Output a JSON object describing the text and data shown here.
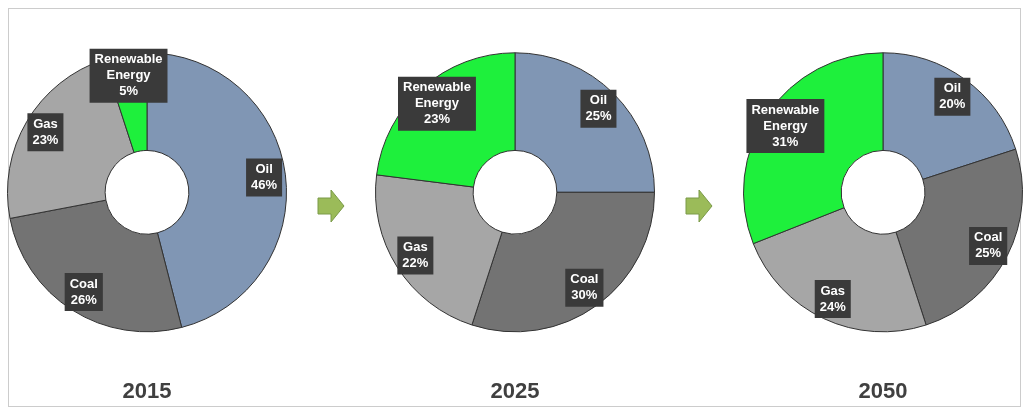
{
  "chart_data": [
    {
      "type": "donut",
      "title": "2015",
      "categories": [
        "Oil",
        "Coal",
        "Gas",
        "Renewable Energy"
      ],
      "values": [
        46,
        26,
        23,
        5
      ],
      "value_labels": [
        "46%",
        "26%",
        "23%",
        "5%"
      ],
      "colors": [
        "#8096b4",
        "#737373",
        "#a6a6a6",
        "#1ef03c"
      ],
      "legend": false
    },
    {
      "type": "donut",
      "title": "2025",
      "categories": [
        "Oil",
        "Coal",
        "Gas",
        "Renewable Energy"
      ],
      "values": [
        25,
        30,
        22,
        23
      ],
      "value_labels": [
        "25%",
        "30%",
        "22%",
        "23%"
      ],
      "colors": [
        "#8096b4",
        "#737373",
        "#a6a6a6",
        "#1ef03c"
      ],
      "legend": false
    },
    {
      "type": "donut",
      "title": "2050",
      "categories": [
        "Oil",
        "Coal",
        "Gas",
        "Renewable Energy"
      ],
      "values": [
        20,
        25,
        24,
        31
      ],
      "value_labels": [
        "20%",
        "25%",
        "24%",
        "31%"
      ],
      "colors": [
        "#8096b4",
        "#737373",
        "#a6a6a6",
        "#1ef03c"
      ],
      "legend": false
    }
  ]
}
